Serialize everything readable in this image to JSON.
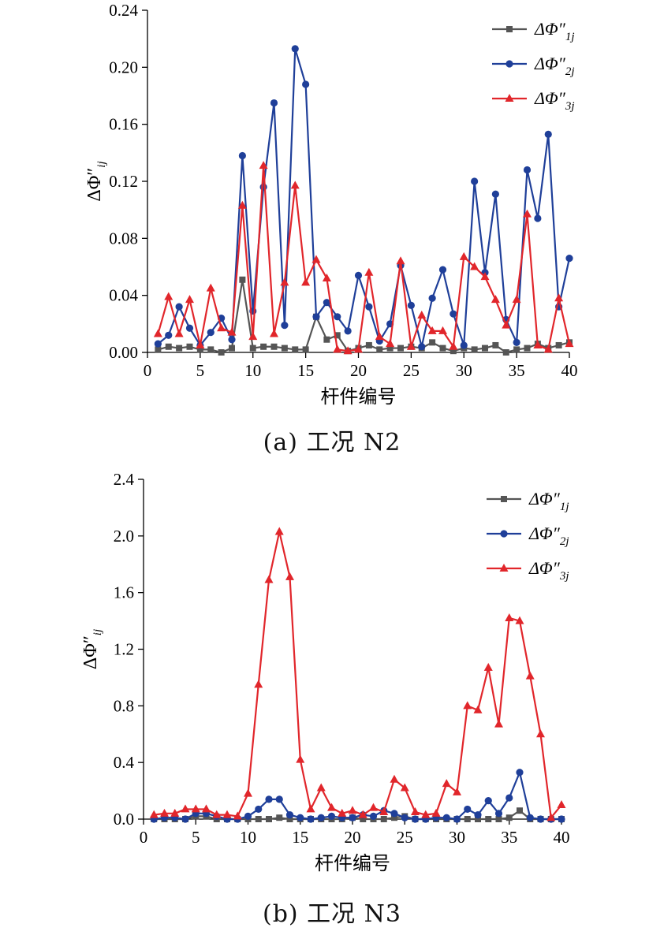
{
  "chart_data": [
    {
      "type": "line",
      "caption": "(a) 工况 N2",
      "xlabel": "杆件编号",
      "ylabel": "ΔΦ″ij",
      "xlim": [
        0,
        40
      ],
      "ylim": [
        0,
        0.24
      ],
      "xticks": [
        0,
        5,
        10,
        15,
        20,
        25,
        30,
        35,
        40
      ],
      "xtick_labels": [
        "0",
        "5",
        "10",
        "15",
        "20",
        "25",
        "30",
        "35",
        "40"
      ],
      "yticks": [
        0,
        0.04,
        0.08,
        0.12,
        0.16,
        0.2,
        0.24
      ],
      "ytick_labels": [
        "0.00",
        "0.04",
        "0.08",
        "0.12",
        "0.16",
        "0.20",
        "0.24"
      ],
      "legend_position": "top-right",
      "x": [
        1,
        2,
        3,
        4,
        5,
        6,
        7,
        8,
        9,
        10,
        11,
        12,
        13,
        14,
        15,
        16,
        17,
        18,
        19,
        20,
        21,
        22,
        23,
        24,
        25,
        26,
        27,
        28,
        29,
        30,
        31,
        32,
        33,
        34,
        35,
        36,
        37,
        38,
        39,
        40
      ],
      "series": [
        {
          "name": "ΔΦ″1j",
          "label_main": "ΔΦ″",
          "label_sub": "1j",
          "color": "#555555",
          "marker": "square",
          "values": [
            0.002,
            0.004,
            0.003,
            0.004,
            0.002,
            0.002,
            0.0,
            0.003,
            0.051,
            0.003,
            0.004,
            0.004,
            0.003,
            0.002,
            0.002,
            0.025,
            0.009,
            0.012,
            0.001,
            0.003,
            0.005,
            0.002,
            0.003,
            0.003,
            0.004,
            0.003,
            0.007,
            0.003,
            0.001,
            0.003,
            0.002,
            0.003,
            0.005,
            0.0,
            0.002,
            0.003,
            0.006,
            0.003,
            0.005,
            0.007
          ]
        },
        {
          "name": "ΔΦ″2j",
          "label_main": "ΔΦ″",
          "label_sub": "2j",
          "color": "#1f3f99",
          "marker": "circle",
          "values": [
            0.006,
            0.012,
            0.032,
            0.017,
            0.005,
            0.014,
            0.024,
            0.009,
            0.138,
            0.029,
            0.116,
            0.175,
            0.019,
            0.213,
            0.188,
            0.025,
            0.035,
            0.025,
            0.015,
            0.054,
            0.032,
            0.008,
            0.02,
            0.061,
            0.033,
            0.004,
            0.038,
            0.058,
            0.027,
            0.005,
            0.12,
            0.056,
            0.111,
            0.023,
            0.007,
            0.128,
            0.094,
            0.153,
            0.032,
            0.066
          ]
        },
        {
          "name": "ΔΦ″3j",
          "label_main": "ΔΦ″",
          "label_sub": "3j",
          "color": "#e1262b",
          "marker": "triangle",
          "values": [
            0.013,
            0.039,
            0.013,
            0.037,
            0.005,
            0.045,
            0.017,
            0.014,
            0.103,
            0.011,
            0.131,
            0.013,
            0.049,
            0.117,
            0.049,
            0.065,
            0.052,
            0.002,
            0.001,
            0.002,
            0.056,
            0.011,
            0.006,
            0.064,
            0.004,
            0.026,
            0.015,
            0.015,
            0.004,
            0.067,
            0.06,
            0.053,
            0.037,
            0.019,
            0.037,
            0.097,
            0.005,
            0.002,
            0.038,
            0.006
          ]
        }
      ]
    },
    {
      "type": "line",
      "caption": "(b) 工况 N3",
      "xlabel": "杆件编号",
      "ylabel": "ΔΦ″ij",
      "xlim": [
        0,
        40
      ],
      "ylim": [
        0,
        2.4
      ],
      "xticks": [
        0,
        5,
        10,
        15,
        20,
        25,
        30,
        35,
        40
      ],
      "xtick_labels": [
        "0",
        "5",
        "10",
        "15",
        "20",
        "25",
        "30",
        "35",
        "40"
      ],
      "yticks": [
        0,
        0.4,
        0.8,
        1.2,
        1.6,
        2.0,
        2.4
      ],
      "ytick_labels": [
        "0.0",
        "0.4",
        "0.8",
        "1.2",
        "1.6",
        "2.0",
        "2.4"
      ],
      "legend_position": "top-right",
      "x": [
        1,
        2,
        3,
        4,
        5,
        6,
        7,
        8,
        9,
        10,
        11,
        12,
        13,
        14,
        15,
        16,
        17,
        18,
        19,
        20,
        21,
        22,
        23,
        24,
        25,
        26,
        27,
        28,
        29,
        30,
        31,
        32,
        33,
        34,
        35,
        36,
        37,
        38,
        39,
        40
      ],
      "series": [
        {
          "name": "ΔΦ″1j",
          "label_main": "ΔΦ″",
          "label_sub": "1j",
          "color": "#555555",
          "marker": "square",
          "values": [
            0.0,
            0.0,
            0.0,
            0.0,
            0.02,
            0.02,
            0.0,
            0.0,
            0.0,
            0.0,
            0.0,
            0.0,
            0.01,
            0.0,
            0.0,
            0.0,
            0.0,
            0.0,
            0.0,
            0.01,
            0.0,
            0.0,
            0.0,
            0.01,
            0.02,
            0.0,
            0.0,
            0.0,
            0.0,
            0.0,
            0.0,
            0.0,
            0.0,
            0.0,
            0.01,
            0.06,
            0.0,
            0.0,
            0.0,
            0.0
          ]
        },
        {
          "name": "ΔΦ″2j",
          "label_main": "ΔΦ″",
          "label_sub": "2j",
          "color": "#1f3f99",
          "marker": "circle",
          "values": [
            0.0,
            0.01,
            0.01,
            0.0,
            0.04,
            0.04,
            0.02,
            0.0,
            0.0,
            0.02,
            0.07,
            0.14,
            0.14,
            0.03,
            0.01,
            0.0,
            0.01,
            0.02,
            0.01,
            0.01,
            0.03,
            0.02,
            0.06,
            0.04,
            0.01,
            0.0,
            0.0,
            0.01,
            0.01,
            0.0,
            0.07,
            0.03,
            0.13,
            0.04,
            0.15,
            0.33,
            0.01,
            0.0,
            0.0,
            0.0
          ]
        },
        {
          "name": "ΔΦ″3j",
          "label_main": "ΔΦ″",
          "label_sub": "3j",
          "color": "#e1262b",
          "marker": "triangle",
          "values": [
            0.03,
            0.04,
            0.04,
            0.07,
            0.07,
            0.07,
            0.03,
            0.03,
            0.02,
            0.18,
            0.95,
            1.69,
            2.03,
            1.71,
            0.42,
            0.07,
            0.22,
            0.08,
            0.04,
            0.06,
            0.03,
            0.08,
            0.05,
            0.28,
            0.22,
            0.05,
            0.03,
            0.04,
            0.25,
            0.19,
            0.8,
            0.77,
            1.07,
            0.67,
            1.42,
            1.4,
            1.01,
            0.6,
            0.01,
            0.1
          ]
        }
      ]
    }
  ]
}
